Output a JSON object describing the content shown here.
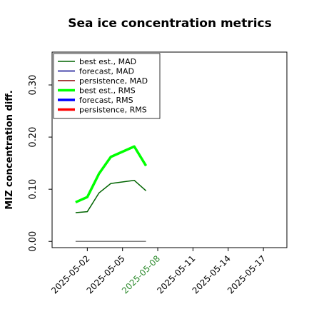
{
  "chart_data": {
    "type": "line",
    "title": "Sea ice concentration metrics",
    "ylabel": "MIZ concentration diff.",
    "x": [
      "2025-05-01",
      "2025-05-02",
      "2025-05-03",
      "2025-05-04",
      "2025-05-06",
      "2025-05-07"
    ],
    "series": [
      {
        "name": "best est., MAD",
        "color": "#006400",
        "width": 1.5,
        "values": [
          0.055,
          0.057,
          0.093,
          0.111,
          0.117,
          0.097
        ]
      },
      {
        "name": "forecast, MAD",
        "color": "#00008b",
        "width": 1.5,
        "values": [
          null,
          null,
          null,
          null,
          null,
          null
        ]
      },
      {
        "name": "persistence, MAD",
        "color": "#8b0000",
        "width": 1.5,
        "values": [
          null,
          null,
          null,
          null,
          null,
          null
        ]
      },
      {
        "name": "best est., RMS",
        "color": "#00ff00",
        "width": 3.5,
        "values": [
          0.075,
          0.085,
          0.13,
          0.162,
          0.182,
          0.145
        ]
      },
      {
        "name": "forecast, RMS",
        "color": "#0000ff",
        "width": 3.5,
        "values": [
          null,
          null,
          null,
          null,
          null,
          null
        ]
      },
      {
        "name": "persistence, RMS",
        "color": "#ff0000",
        "width": 3.5,
        "values": [
          null,
          null,
          null,
          null,
          null,
          null
        ]
      }
    ],
    "baseline": {
      "value": 0,
      "color": "#808080",
      "from": "2025-05-01",
      "to": "2025-05-07"
    },
    "xlim": [
      "2025-04-29",
      "2025-05-19"
    ],
    "xticks": [
      "2025-05-02",
      "2025-05-05",
      "2025-05-08",
      "2025-05-11",
      "2025-05-14",
      "2025-05-17"
    ],
    "xtick_colors": [
      "#000000",
      "#000000",
      "#2e8b2e",
      "#000000",
      "#000000",
      "#000000"
    ],
    "ylim": [
      -0.012,
      0.363
    ],
    "yticks": [
      {
        "value": 0,
        "label": "0.00"
      },
      {
        "value": 0.1,
        "label": "0.10"
      },
      {
        "value": 0.2,
        "label": "0.20"
      },
      {
        "value": 0.3,
        "label": "0.30"
      }
    ],
    "legend": "upper left"
  }
}
